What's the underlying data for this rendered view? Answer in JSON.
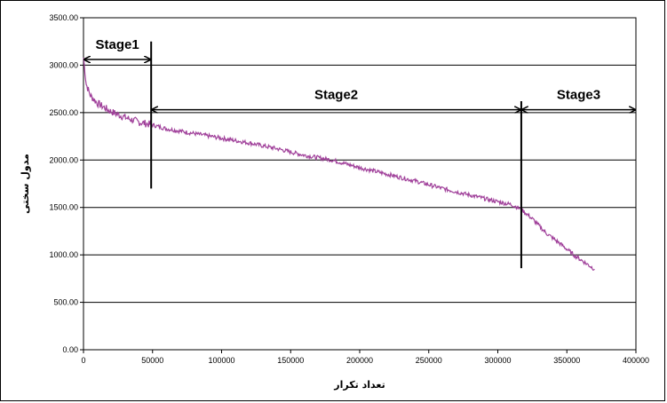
{
  "chart_data": {
    "type": "line",
    "title": "",
    "xlabel": "تعداد تکرار",
    "ylabel": "مدول سختی",
    "xlim": [
      0,
      400000
    ],
    "ylim": [
      0,
      3500
    ],
    "x_ticks": [
      "0",
      "50000",
      "100000",
      "150000",
      "200000",
      "250000",
      "300000",
      "350000",
      "400000"
    ],
    "y_ticks": [
      "0.00",
      "500.00",
      "1000.00",
      "1500.00",
      "2000.00",
      "2500.00",
      "3000.00",
      "3500.00"
    ],
    "grid": "horizontal",
    "series_color": "#a0409a",
    "series": [
      {
        "x": [
          0,
          2000,
          5000,
          10000,
          20000,
          30000,
          40000,
          50000,
          60000,
          80000,
          100000,
          120000,
          140000,
          160000,
          180000,
          200000,
          220000,
          240000,
          260000,
          280000,
          300000,
          310000,
          317000,
          325000,
          335000,
          345000,
          355000,
          362000,
          370000
        ],
        "y": [
          3080,
          2800,
          2680,
          2600,
          2510,
          2450,
          2400,
          2370,
          2330,
          2280,
          2230,
          2180,
          2120,
          2050,
          2000,
          1920,
          1850,
          1780,
          1700,
          1630,
          1560,
          1530,
          1480,
          1380,
          1230,
          1120,
          1000,
          930,
          850
        ]
      }
    ],
    "stage_boundaries": [
      49000,
      317000
    ],
    "annotations": [
      {
        "text": "Stage1",
        "x_start": 0,
        "x_end": 49000,
        "y": 3060
      },
      {
        "text": "Stage2",
        "x_start": 49000,
        "x_end": 317000,
        "y": 2530
      },
      {
        "text": "Stage3",
        "x_start": 317000,
        "x_end": 400000,
        "y": 2530
      }
    ]
  }
}
